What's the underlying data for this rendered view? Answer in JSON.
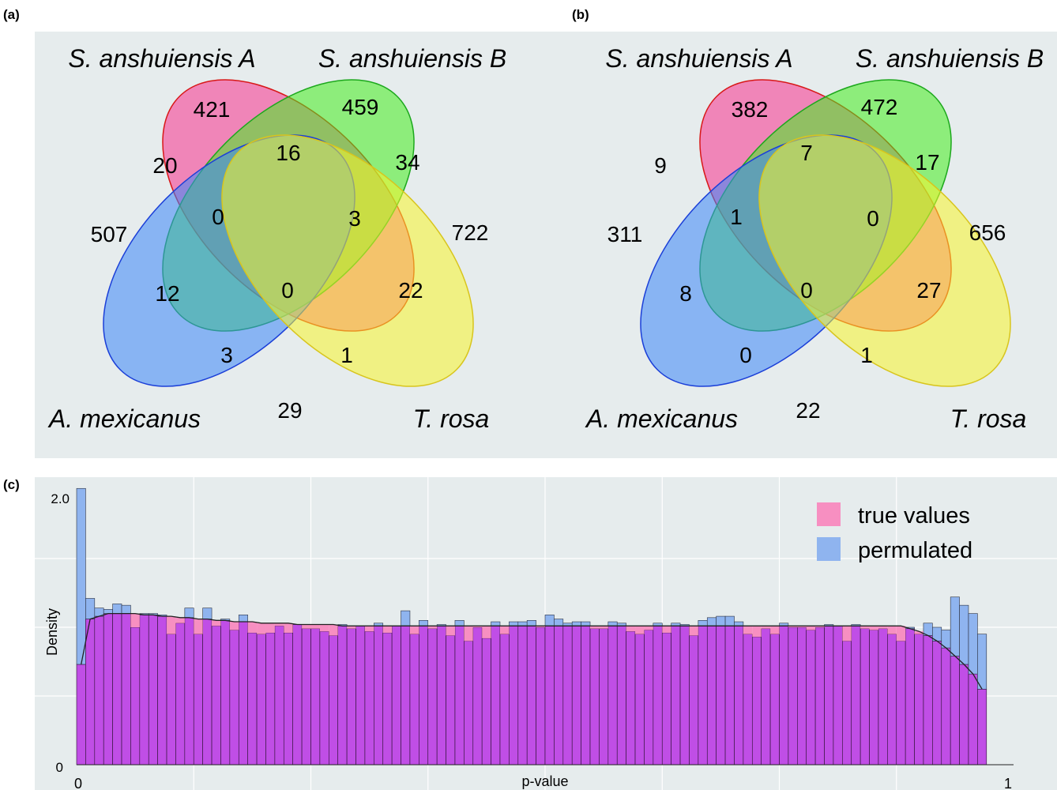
{
  "panel_labels": {
    "a": "(a)",
    "b": "(b)",
    "c": "(c)"
  },
  "chart_data": [
    {
      "type": "venn",
      "panel": "(a)",
      "sets": [
        "S. anshuiensis A",
        "S. anshuiensis B",
        "A. mexicanus",
        "T. rosa"
      ],
      "regions": {
        "A_only": 421,
        "B_only": 459,
        "M_only": 507,
        "T_only": 722,
        "A_M": 20,
        "A_B": 16,
        "B_T": 34,
        "A_B_M": 0,
        "A_B_T": 3,
        "A_B_M_T": 0,
        "B_M": 12,
        "A_T": 22,
        "B_M_T": 3,
        "A_M_T": 1,
        "M_T": 29
      }
    },
    {
      "type": "venn",
      "panel": "(b)",
      "sets": [
        "S. anshuiensis A",
        "S. anshuiensis B",
        "A. mexicanus",
        "T. rosa"
      ],
      "regions": {
        "A_only": 382,
        "B_only": 472,
        "M_only": 311,
        "T_only": 656,
        "A_M": 9,
        "A_B": 7,
        "B_T": 17,
        "A_B_M": 1,
        "A_B_T": 0,
        "A_B_M_T": 0,
        "B_M": 8,
        "A_T": 27,
        "B_M_T": 0,
        "A_M_T": 1,
        "M_T": 22
      }
    },
    {
      "type": "histogram",
      "panel": "(c)",
      "xlabel": "p-value",
      "ylabel": "Density",
      "xlim": [
        0,
        1
      ],
      "ylim": [
        0,
        2.0
      ],
      "xticks": [
        "0",
        "1"
      ],
      "yticks": [
        "0",
        "2.0"
      ],
      "grid": true,
      "legend_position": "top-right",
      "series": [
        {
          "name": "true values",
          "color": "#f78fc1",
          "values": [
            0.73,
            1.06,
            1.08,
            1.1,
            1.1,
            1.1,
            1.1,
            1.09,
            1.09,
            1.08,
            1.08,
            1.07,
            1.07,
            1.06,
            1.06,
            1.05,
            1.05,
            1.04,
            1.04,
            1.04,
            1.03,
            1.03,
            1.03,
            1.03,
            1.02,
            1.02,
            1.02,
            1.02,
            1.02,
            1.01,
            1.01,
            1.01,
            1.01,
            1.01,
            1.01,
            1.01,
            1.01,
            1.01,
            1.01,
            1.01,
            1.01,
            1.01,
            1.01,
            1.01,
            1.01,
            1.01,
            1.01,
            1.01,
            1.01,
            1.01,
            1.01,
            1.01,
            1.01,
            1.01,
            1.01,
            1.01,
            1.01,
            1.01,
            1.01,
            1.01,
            1.01,
            1.01,
            1.01,
            1.01,
            1.01,
            1.01,
            1.01,
            1.01,
            1.01,
            1.01,
            1.01,
            1.01,
            1.01,
            1.01,
            1.01,
            1.01,
            1.01,
            1.01,
            1.01,
            1.01,
            1.01,
            1.01,
            1.01,
            1.01,
            1.01,
            1.01,
            1.01,
            1.01,
            1.01,
            1.01,
            1.01,
            1.01,
            0.99,
            0.97,
            0.94,
            0.9,
            0.85,
            0.79,
            0.73,
            0.66,
            0.55
          ]
        },
        {
          "name": "permulated",
          "color": "#8fb4ef",
          "values": [
            2.01,
            1.21,
            1.14,
            1.13,
            1.17,
            1.16,
            1.0,
            1.1,
            1.1,
            1.09,
            0.95,
            1.03,
            1.14,
            0.95,
            1.14,
            1.01,
            1.06,
            0.98,
            1.09,
            0.96,
            0.95,
            0.96,
            1.01,
            0.96,
            1.02,
            0.99,
            0.99,
            0.97,
            0.94,
            1.02,
            0.99,
            1.01,
            0.97,
            1.03,
            0.96,
            1.01,
            1.12,
            0.95,
            1.05,
            0.99,
            1.02,
            0.94,
            1.05,
            0.9,
            1.0,
            0.92,
            1.04,
            0.95,
            1.04,
            1.04,
            1.05,
            1.0,
            1.09,
            1.06,
            1.03,
            1.04,
            1.04,
            0.99,
            0.99,
            1.04,
            1.03,
            0.97,
            0.95,
            0.98,
            1.03,
            0.96,
            1.03,
            1.02,
            0.94,
            1.05,
            1.07,
            1.08,
            1.08,
            1.04,
            0.95,
            0.93,
            0.99,
            0.95,
            1.03,
            1.0,
            1.0,
            0.98,
            1.0,
            1.02,
            1.01,
            0.9,
            1.02,
            0.99,
            0.98,
            0.99,
            0.95,
            0.9,
            1.0,
            0.95,
            1.03,
            1.0,
            0.98,
            1.22,
            1.16,
            1.1,
            0.95,
            0.86,
            0.71,
            0.56
          ]
        }
      ]
    }
  ],
  "legend": {
    "true_label": "true values",
    "perm_label": "permulated"
  },
  "axis": {
    "xlabel": "p-value",
    "ylabel": "Density",
    "x0": "0",
    "x1": "1",
    "y0": "0",
    "y2": "2.0"
  }
}
